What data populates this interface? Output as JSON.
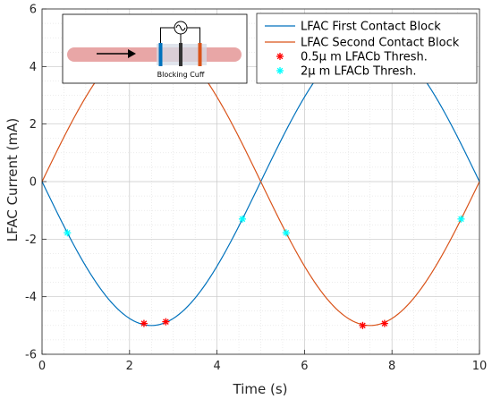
{
  "chart_data": {
    "type": "line",
    "title": "",
    "xlabel": "Time (s)",
    "ylabel": "LFAC Current (mA)",
    "xlim": [
      0,
      10
    ],
    "ylim": [
      -6,
      6
    ],
    "x_ticks": [
      "0",
      "2",
      "4",
      "6",
      "8",
      "10"
    ],
    "y_ticks": [
      "-6",
      "-4",
      "-2",
      "0",
      "2",
      "4",
      "6"
    ],
    "grid": true,
    "minor_grid": true,
    "legend_position": "top-right",
    "series": [
      {
        "name": "LFAC First Contact Block",
        "color": "#0072BD",
        "amplitude": 5,
        "period": 10,
        "phase": "-sin",
        "x": [
          0,
          1,
          2,
          2.5,
          3,
          4,
          5,
          6,
          7,
          7.5,
          8,
          9,
          10
        ],
        "y": [
          0,
          -2.94,
          -4.76,
          -5,
          -4.76,
          -2.94,
          0,
          2.94,
          4.76,
          5,
          4.76,
          2.94,
          0
        ]
      },
      {
        "name": "LFAC Second Contact Block",
        "color": "#D95319",
        "amplitude": 5,
        "period": 10,
        "phase": "+sin",
        "x": [
          0,
          1,
          2,
          2.5,
          3,
          4,
          5,
          6,
          7,
          7.5,
          8,
          9,
          10
        ],
        "y": [
          0,
          2.94,
          4.76,
          5,
          4.76,
          2.94,
          0,
          -2.94,
          -4.76,
          -5,
          -4.76,
          -2.94,
          0
        ]
      },
      {
        "name": "0.5μ m LFACb Thresh.",
        "color": "#FF0000",
        "marker": "*",
        "points": [
          [
            2.33,
            -4.93
          ],
          [
            2.83,
            -4.87
          ],
          [
            7.33,
            -5.0
          ],
          [
            7.83,
            -4.93
          ]
        ]
      },
      {
        "name": "2μ m LFACb Thresh.",
        "color": "#00FFFF",
        "marker": "*",
        "points": [
          [
            0.58,
            -1.78
          ],
          [
            4.58,
            -1.3
          ],
          [
            5.58,
            -1.78
          ],
          [
            9.58,
            -1.3
          ]
        ]
      }
    ],
    "legend": [
      {
        "label": "LFAC First Contact Block",
        "kind": "line",
        "color": "#0072BD"
      },
      {
        "label": "LFAC Second Contact Block",
        "kind": "line",
        "color": "#D95319"
      },
      {
        "label": "0.5μ m LFACb Thresh.",
        "kind": "marker",
        "color": "#FF0000"
      },
      {
        "label": "2μ m LFACb Thresh.",
        "kind": "marker",
        "color": "#00FFFF"
      }
    ],
    "inset": {
      "caption": "Blocking Cuff"
    }
  }
}
